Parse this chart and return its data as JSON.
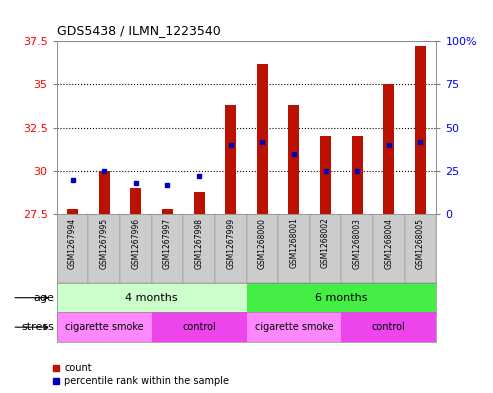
{
  "title": "GDS5438 / ILMN_1223540",
  "samples": [
    "GSM1267994",
    "GSM1267995",
    "GSM1267996",
    "GSM1267997",
    "GSM1267998",
    "GSM1267999",
    "GSM1268000",
    "GSM1268001",
    "GSM1268002",
    "GSM1268003",
    "GSM1268004",
    "GSM1268005"
  ],
  "counts": [
    27.8,
    30.0,
    29.0,
    27.8,
    28.8,
    33.8,
    36.2,
    33.8,
    32.0,
    32.0,
    35.0,
    37.2
  ],
  "percentiles": [
    20,
    25,
    18,
    17,
    22,
    40,
    42,
    35,
    25,
    25,
    40,
    42
  ],
  "ymin": 27.5,
  "ymax": 37.5,
  "yticks": [
    27.5,
    30.0,
    32.5,
    35.0,
    37.5
  ],
  "ytick_labels": [
    "27.5",
    "30",
    "32.5",
    "35",
    "37.5"
  ],
  "right_yticks": [
    0,
    25,
    50,
    75,
    100
  ],
  "right_ytick_labels": [
    "0",
    "25",
    "50",
    "75",
    "100%"
  ],
  "bar_color": "#bb1100",
  "dot_color": "#0000bb",
  "plot_bg": "#ffffff",
  "xtick_bg": "#cccccc",
  "age_groups": [
    {
      "label": "4 months",
      "start": 0,
      "end": 5,
      "color": "#ccffcc"
    },
    {
      "label": "6 months",
      "start": 6,
      "end": 11,
      "color": "#44ee44"
    }
  ],
  "stress_groups": [
    {
      "label": "cigarette smoke",
      "start": 0,
      "end": 2,
      "color": "#ff88ff"
    },
    {
      "label": "control",
      "start": 3,
      "end": 5,
      "color": "#ee44ee"
    },
    {
      "label": "cigarette smoke",
      "start": 6,
      "end": 8,
      "color": "#ff88ff"
    },
    {
      "label": "control",
      "start": 9,
      "end": 11,
      "color": "#ee44ee"
    }
  ],
  "fig_width": 4.93,
  "fig_height": 3.93,
  "dpi": 100
}
